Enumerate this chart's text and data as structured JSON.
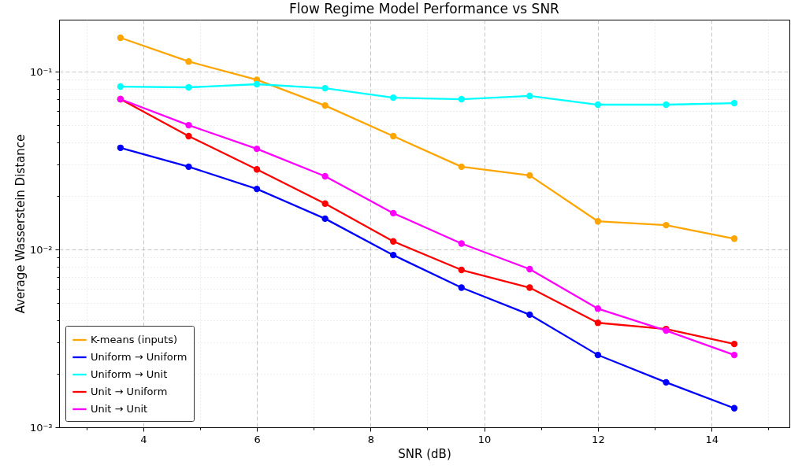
{
  "chart_data": {
    "type": "line",
    "title": "Flow Regime Model Performance vs SNR",
    "xlabel": "SNR (dB)",
    "ylabel": "Average Wasserstein Distance",
    "x": [
      3.6,
      4.8,
      6.0,
      7.2,
      8.4,
      9.6,
      10.8,
      12.0,
      13.2,
      14.4
    ],
    "series": [
      {
        "name": "K-means (inputs)",
        "color": "#ffa500",
        "values": [
          0.155,
          0.114,
          0.09,
          0.0645,
          0.0434,
          0.0292,
          0.0261,
          0.0144,
          0.0137,
          0.0115
        ]
      },
      {
        "name": "Uniform → Uniform",
        "color": "#0000ff",
        "values": [
          0.0373,
          0.0292,
          0.0219,
          0.0149,
          0.0093,
          0.0061,
          0.0043,
          0.00255,
          0.00179,
          0.00128
        ]
      },
      {
        "name": "Uniform → Unit",
        "color": "#00ffff",
        "values": [
          0.0824,
          0.0816,
          0.085,
          0.0807,
          0.0714,
          0.07,
          0.073,
          0.0652,
          0.0652,
          0.0665
        ]
      },
      {
        "name": "Unit → Uniform",
        "color": "#ff0000",
        "values": [
          0.07,
          0.0434,
          0.0282,
          0.0181,
          0.0111,
          0.00767,
          0.0061,
          0.00387,
          0.00357,
          0.00294
        ]
      },
      {
        "name": "Unit → Unit",
        "color": "#ff00ff",
        "values": [
          0.07,
          0.05,
          0.0368,
          0.0258,
          0.016,
          0.0108,
          0.00775,
          0.00465,
          0.0035,
          0.00255
        ]
      }
    ],
    "log": "y",
    "xlim": [
      2.52,
      15.37
    ],
    "ylim": [
      0.001,
      0.196
    ],
    "xticks": [
      {
        "value": 3,
        "label": null
      },
      4,
      {
        "value": 5,
        "label": null
      },
      6,
      {
        "value": 7,
        "label": null
      },
      8,
      {
        "value": 9,
        "label": null
      },
      10,
      {
        "value": 11,
        "label": null
      },
      12,
      {
        "value": 13,
        "label": null
      },
      14,
      {
        "value": 15,
        "label": null
      }
    ],
    "yticks": [
      {
        "value": 0.001,
        "label": "10⁻³"
      },
      {
        "value": 0.002,
        "label": null
      },
      {
        "value": 0.003,
        "label": null
      },
      {
        "value": 0.004,
        "label": null
      },
      {
        "value": 0.005,
        "label": null
      },
      {
        "value": 0.006,
        "label": null
      },
      {
        "value": 0.007,
        "label": null
      },
      {
        "value": 0.008,
        "label": null
      },
      {
        "value": 0.009,
        "label": null
      },
      {
        "value": 0.01,
        "label": "10⁻²"
      },
      {
        "value": 0.02,
        "label": null
      },
      {
        "value": 0.03,
        "label": null
      },
      {
        "value": 0.04,
        "label": null
      },
      {
        "value": 0.05,
        "label": null
      },
      {
        "value": 0.06,
        "label": null
      },
      {
        "value": 0.07,
        "label": null
      },
      {
        "value": 0.08,
        "label": null
      },
      {
        "value": 0.09,
        "label": null
      },
      {
        "value": 0.1,
        "label": "10⁻¹"
      }
    ],
    "grid": true,
    "legend": "bottom left",
    "marker": "circle",
    "line_style": "solid"
  }
}
